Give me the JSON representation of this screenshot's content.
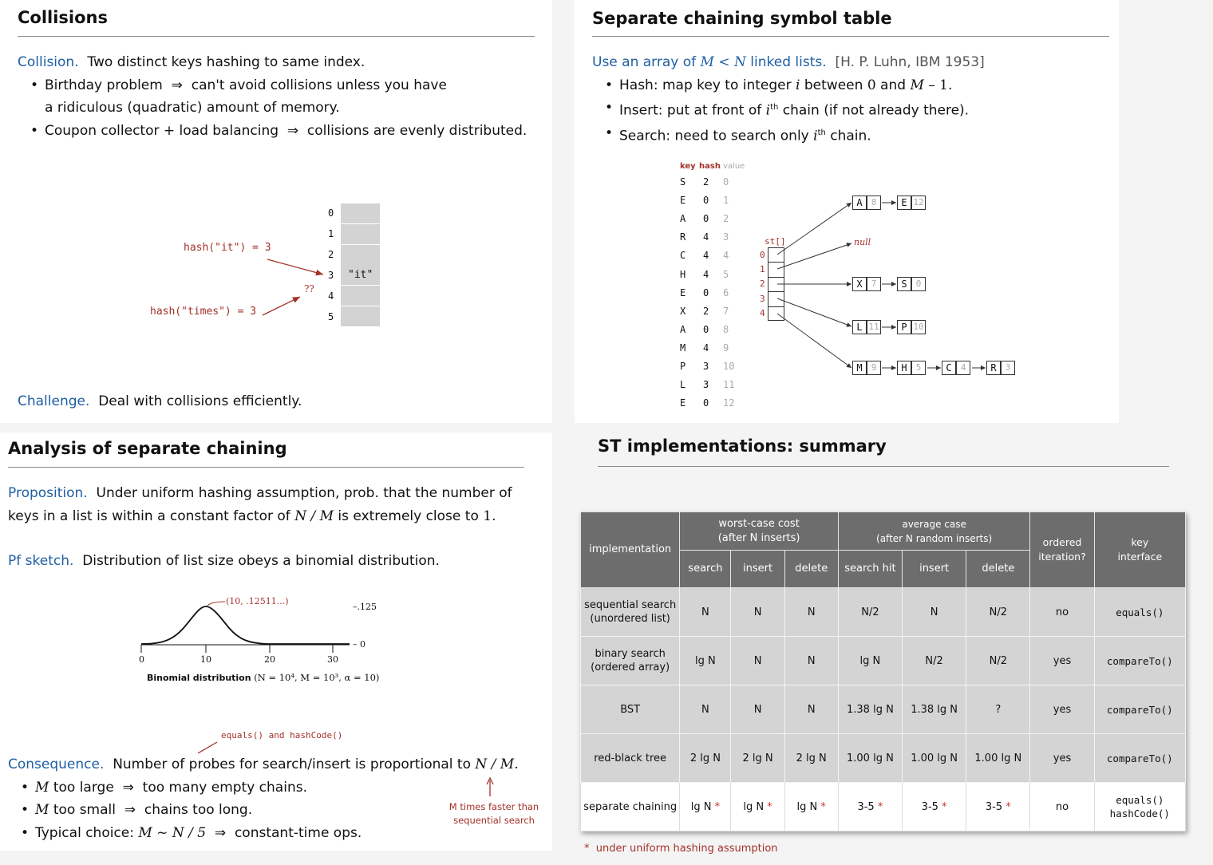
{
  "collisions": {
    "title": "Collisions",
    "def_label": "Collision.",
    "def_text": "Two distinct keys hashing to same index.",
    "bullets": [
      {
        "a": "Birthday problem",
        "arrow": "⇒",
        "b": "can't avoid collisions unless you have"
      },
      {
        "cont": "a ridiculous (quadratic) amount of memory."
      },
      {
        "a": "Coupon collector + load balancing",
        "arrow": "⇒",
        "b": "collisions are evenly distributed."
      }
    ],
    "slots": [
      "0",
      "1",
      "2",
      "3",
      "4",
      "5"
    ],
    "slot3_value": "\"it\"",
    "hash_it": "hash(\"it\") = 3",
    "hash_times": "hash(\"times\") = 3",
    "qq": "??",
    "challenge_label": "Challenge.",
    "challenge_text": "Deal with collisions efficiently."
  },
  "separate": {
    "title": "Separate chaining symbol table",
    "lead_blue_1": "Use an array of ",
    "lead_M": "M",
    "lead_lt": " < ",
    "lead_N": "N",
    "lead_blue_2": " linked lists.",
    "lead_cite": "[H. P. Luhn, IBM 1953]",
    "b1_a": "Hash:  map key to integer ",
    "b1_i": "i",
    "b1_b": " between ",
    "b1_0": "0",
    "b1_and": " and ",
    "b1_M1": "M",
    "b1_m1": " – 1.",
    "b2_a": "Insert:  put at front of ",
    "b2_ith": "i",
    "b2_th": "th",
    "b2_b": " chain (if not already there).",
    "b3_a": "Search:  need to search only ",
    "b3_ith": "i",
    "b3_th": "th",
    "b3_b": " chain.",
    "col_key": "key",
    "col_hash": "hash",
    "col_value": "value",
    "rows": [
      {
        "k": "S",
        "h": "2",
        "v": "0"
      },
      {
        "k": "E",
        "h": "0",
        "v": "1"
      },
      {
        "k": "A",
        "h": "0",
        "v": "2"
      },
      {
        "k": "R",
        "h": "4",
        "v": "3"
      },
      {
        "k": "C",
        "h": "4",
        "v": "4"
      },
      {
        "k": "H",
        "h": "4",
        "v": "5"
      },
      {
        "k": "E",
        "h": "0",
        "v": "6"
      },
      {
        "k": "X",
        "h": "2",
        "v": "7"
      },
      {
        "k": "A",
        "h": "0",
        "v": "8"
      },
      {
        "k": "M",
        "h": "4",
        "v": "9"
      },
      {
        "k": "P",
        "h": "3",
        "v": "10"
      },
      {
        "k": "L",
        "h": "3",
        "v": "11"
      },
      {
        "k": "E",
        "h": "0",
        "v": "12"
      }
    ],
    "st_label": "st[]",
    "indices": [
      "0",
      "1",
      "2",
      "3",
      "4"
    ],
    "null_label": "null",
    "chain0": [
      {
        "k": "A",
        "v": "8"
      },
      {
        "k": "E",
        "v": "12"
      }
    ],
    "chain2": [
      {
        "k": "X",
        "v": "7"
      },
      {
        "k": "S",
        "v": "0"
      }
    ],
    "chain3": [
      {
        "k": "L",
        "v": "11"
      },
      {
        "k": "P",
        "v": "10"
      }
    ],
    "chain4": [
      {
        "k": "M",
        "v": "9"
      },
      {
        "k": "H",
        "v": "5"
      },
      {
        "k": "C",
        "v": "4"
      },
      {
        "k": "R",
        "v": "3"
      }
    ]
  },
  "analysis": {
    "title": "Analysis of separate chaining",
    "prop_label": "Proposition.",
    "prop_text_1": "Under uniform hashing assumption, prob. that the number of",
    "prop_text_2a": "keys in a list is within a constant factor of ",
    "prop_NM": "N / M",
    "prop_text_2b": " is extremely close to ",
    "prop_1": "1.",
    "pf_label": "Pf sketch.",
    "pf_text": "Distribution of list size obeys a binomial distribution.",
    "peak_label": "(10, .12511...)",
    "right_top": "–.125",
    "right_bot": "– 0",
    "ticks": [
      "0",
      "10",
      "20",
      "30"
    ],
    "caption_bold": "Binomial distribution",
    "caption_math": "(N = 10⁴, M = 10³, α = 10)",
    "equals_note": "equals() and hashCode()",
    "cons_label": "Consequence.",
    "cons_text": "Number of probes for search/insert is proportional to ",
    "cons_NM": "N / M.",
    "c1_M": "M",
    "c1_a": " too large",
    "c1_arrow": "⇒",
    "c1_b": "too many empty chains.",
    "c2_M": "M",
    "c2_a": " too small",
    "c2_arrow": "⇒",
    "c2_b": "chains too long.",
    "c3_a": "Typical choice:  ",
    "c3_math": "M ~ N / 5",
    "c3_arrow": "⇒",
    "c3_b": "constant-time ops.",
    "faster_1": "M times faster than",
    "faster_2": "sequential search"
  },
  "summary": {
    "title": "ST implementations:  summary",
    "h_impl": "implementation",
    "h_worst_1": "worst-case cost",
    "h_worst_2": "(after N inserts)",
    "h_avg_1": "average case",
    "h_avg_2": "(after N random inserts)",
    "h_ordered_1": "ordered",
    "h_ordered_2": "iteration?",
    "h_key_1": "key",
    "h_key_2": "interface",
    "sub": [
      "search",
      "insert",
      "delete",
      "search hit",
      "insert",
      "delete"
    ],
    "rows": [
      {
        "impl1": "sequential search",
        "impl2": "(unordered list)",
        "c": [
          "N",
          "N",
          "N",
          "N/2",
          "N",
          "N/2"
        ],
        "ord": "no",
        "key1": "equals()",
        "key2": ""
      },
      {
        "impl1": "binary search",
        "impl2": "(ordered array)",
        "c": [
          "lg N",
          "N",
          "N",
          "lg N",
          "N/2",
          "N/2"
        ],
        "ord": "yes",
        "key1": "compareTo()",
        "key2": ""
      },
      {
        "impl1": "BST",
        "impl2": "",
        "c": [
          "N",
          "N",
          "N",
          "1.38 lg N",
          "1.38 lg N",
          "?"
        ],
        "ord": "yes",
        "key1": "compareTo()",
        "key2": ""
      },
      {
        "impl1": "red-black tree",
        "impl2": "",
        "c": [
          "2 lg N",
          "2 lg N",
          "2 lg N",
          "1.00 lg N",
          "1.00 lg N",
          "1.00 lg N"
        ],
        "ord": "yes",
        "key1": "compareTo()",
        "key2": ""
      }
    ],
    "sc": {
      "impl1": "separate chaining",
      "c": [
        "lg N",
        "lg N",
        "lg N",
        "3-5",
        "3-5",
        "3-5"
      ],
      "star": "*",
      "ord": "no",
      "key1": "equals()",
      "key2": "hashCode()"
    },
    "footnote_star": "*",
    "footnote": "under uniform hashing assumption"
  }
}
